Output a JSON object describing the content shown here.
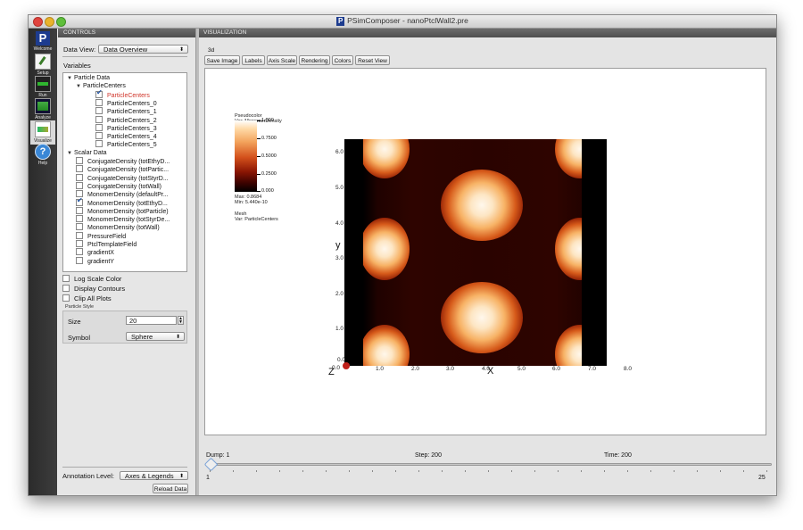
{
  "window": {
    "title": "PSimComposer - nanoPtclWall2.pre",
    "title_logo": "P"
  },
  "iconbar": [
    {
      "label": "Welcome",
      "icon": "welcome-icon"
    },
    {
      "label": "Setup",
      "icon": "setup-icon"
    },
    {
      "label": "Run",
      "icon": "run-icon"
    },
    {
      "label": "Analyze",
      "icon": "analyze-icon"
    },
    {
      "label": "Visualize",
      "icon": "visualize-icon"
    },
    {
      "label": "Help",
      "icon": "help-icon"
    }
  ],
  "controls": {
    "header": "CONTROLS",
    "data_view_label": "Data View:",
    "data_view_value": "Data Overview",
    "variables_label": "Variables",
    "tree": [
      {
        "level": 0,
        "label": "Particle Data",
        "expanded": true
      },
      {
        "level": 1,
        "label": "ParticleCenters",
        "expanded": true
      },
      {
        "level": 2,
        "label": "ParticleCenters",
        "checked": true,
        "selected": true
      },
      {
        "level": 2,
        "label": "ParticleCenters_0",
        "checked": false
      },
      {
        "level": 2,
        "label": "ParticleCenters_1",
        "checked": false
      },
      {
        "level": 2,
        "label": "ParticleCenters_2",
        "checked": false
      },
      {
        "level": 2,
        "label": "ParticleCenters_3",
        "checked": false
      },
      {
        "level": 2,
        "label": "ParticleCenters_4",
        "checked": false
      },
      {
        "level": 2,
        "label": "ParticleCenters_5",
        "checked": false
      },
      {
        "level": 0,
        "label": "Scalar Data",
        "expanded": true
      },
      {
        "level": 1,
        "label": "ConjugateDensity (totEthyD...",
        "checked": false
      },
      {
        "level": 1,
        "label": "ConjugateDensity (totPartic...",
        "checked": false
      },
      {
        "level": 1,
        "label": "ConjugateDensity (totStyrD...",
        "checked": false
      },
      {
        "level": 1,
        "label": "ConjugateDensity (totWall)",
        "checked": false
      },
      {
        "level": 1,
        "label": "MonomerDensity (defaultPr...",
        "checked": false
      },
      {
        "level": 1,
        "label": "MonomerDensity (totEthyD...",
        "checked": true
      },
      {
        "level": 1,
        "label": "MonomerDensity (totParticle)",
        "checked": false
      },
      {
        "level": 1,
        "label": "MonomerDensity (totStyrDe...",
        "checked": false
      },
      {
        "level": 1,
        "label": "MonomerDensity (totWall)",
        "checked": false
      },
      {
        "level": 1,
        "label": "PressureField",
        "checked": false
      },
      {
        "level": 1,
        "label": "PtclTemplateField",
        "checked": false
      },
      {
        "level": 1,
        "label": "gradientX",
        "checked": false
      },
      {
        "level": 1,
        "label": "gradientY",
        "checked": false
      }
    ],
    "options": {
      "log_scale": "Log Scale Color",
      "display_contours": "Display Contours",
      "clip_all": "Clip All Plots"
    },
    "particle_style": {
      "label": "Particle Style",
      "size_label": "Size",
      "size_value": "20",
      "symbol_label": "Symbol",
      "symbol_value": "Sphere"
    },
    "annotation_label": "Annotation Level:",
    "annotation_value": "Axes & Legends",
    "reload_button": "Reload Data"
  },
  "visualization": {
    "header": "VISUALIZATION",
    "mode": "3d",
    "toolbar": [
      "Save Image",
      "Labels",
      "Axis Scale",
      "Rendering",
      "Colors",
      "Reset View"
    ],
    "legend": {
      "title1": "Pseudocolor",
      "title2": "Var: MonomerDensity",
      "ticks": [
        "1.000",
        "0.7500",
        "0.5000",
        "0.2500",
        "0.000"
      ],
      "max": "Max:  0.8684",
      "min": "Min:  5.440e-10",
      "mesh1": "Mesh",
      "mesh2": "Var: ParticleCenters"
    },
    "axes": {
      "x_ticks": [
        "1.0",
        "2.0",
        "3.0",
        "4.0",
        "5.0",
        "6.0",
        "7.0",
        "8.0"
      ],
      "y_ticks": [
        "1.0",
        "2.0",
        "3.0",
        "4.0",
        "5.0",
        "6.0"
      ],
      "origin_x": "0.0",
      "origin_y": "0.0",
      "x_title": "X",
      "y_title": "y",
      "z_title": "Z"
    },
    "colors": {
      "low": "#000000",
      "mid": "#d3501b",
      "high": "#ffffff",
      "marker": "#c0201a"
    }
  },
  "timebar": {
    "dump": "Dump: 1",
    "step": "Step: 200",
    "time": "Time: 200",
    "slider_min": "1",
    "slider_max": "25",
    "slider_value": 1
  }
}
